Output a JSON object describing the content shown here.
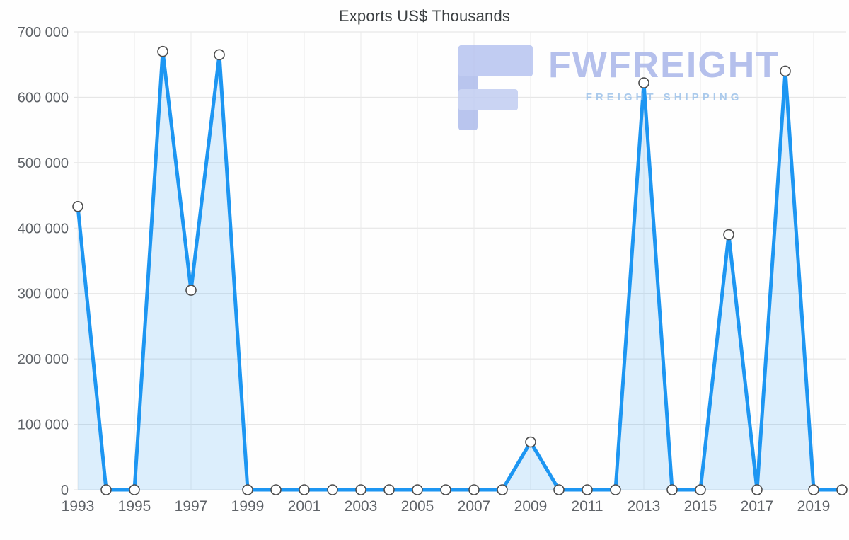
{
  "title": "Exports US$ Thousands",
  "watermark": {
    "brand": "FWFREIGHT",
    "tagline": "FREIGHT SHIPPING"
  },
  "chart_data": {
    "type": "area",
    "title": "Exports US$ Thousands",
    "x": [
      1993,
      1994,
      1995,
      1996,
      1997,
      1998,
      1999,
      2000,
      2001,
      2002,
      2003,
      2004,
      2005,
      2006,
      2007,
      2008,
      2009,
      2010,
      2011,
      2012,
      2013,
      2014,
      2015,
      2016,
      2017,
      2018,
      2019,
      2020
    ],
    "values": [
      433000,
      0,
      0,
      670000,
      305000,
      665000,
      0,
      0,
      0,
      0,
      0,
      0,
      0,
      0,
      0,
      0,
      73000,
      0,
      0,
      0,
      622000,
      0,
      0,
      390000,
      0,
      640000,
      0,
      0
    ],
    "ylim": [
      0,
      700000
    ],
    "ytick_step": 100000,
    "ytick_labels": [
      "0",
      "100 000",
      "200 000",
      "300 000",
      "400 000",
      "500 000",
      "600 000",
      "700 000"
    ],
    "xtick_years": [
      1993,
      1995,
      1997,
      1999,
      2001,
      2003,
      2005,
      2007,
      2009,
      2011,
      2013,
      2015,
      2017,
      2019
    ],
    "grid": true,
    "legend": "none",
    "colors": {
      "line": "#1d96f2",
      "fill": "#1d96f2",
      "fill_opacity": 0.15,
      "marker_fill": "#ffffff",
      "marker_stroke": "#4d4d4d",
      "grid_h": "#e2e2e2",
      "grid_v": "#eaeaea",
      "tick_text": "#5f6368",
      "title_text": "#3c4043"
    }
  }
}
